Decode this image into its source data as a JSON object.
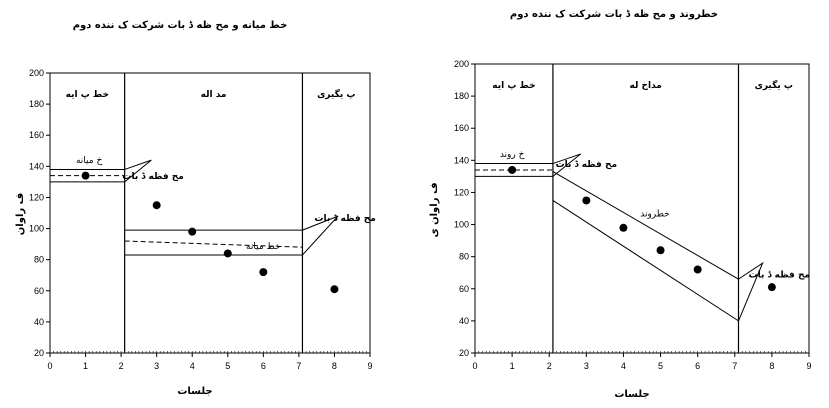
{
  "chart_data": [
    {
      "type": "scatter",
      "title": "خط میانه و مح ظه ڈ بات شرکت ک ننده دوم",
      "xlabel": "جلسات",
      "ylabel": "ف راوان",
      "xlim": [
        0,
        9
      ],
      "ylim": [
        20,
        200
      ],
      "xticks": [
        0,
        1,
        2,
        3,
        4,
        5,
        6,
        7,
        8,
        9
      ],
      "yticks": [
        20,
        40,
        60,
        80,
        100,
        120,
        140,
        160,
        180,
        200
      ],
      "phase_lines": [
        2.1,
        7.1
      ],
      "phases": [
        {
          "label": "خط پ ایه",
          "x": 1.05
        },
        {
          "label": "مد اله",
          "x": 4.6
        },
        {
          "label": "پ یگیری",
          "x": 8.05
        }
      ],
      "points": [
        [
          1,
          134
        ],
        [
          3,
          115
        ],
        [
          4,
          98
        ],
        [
          5,
          84
        ],
        [
          6,
          72
        ],
        [
          8,
          61
        ]
      ],
      "bands": [
        {
          "x": [
            0,
            2.1
          ],
          "upper": [
            138,
            138
          ],
          "lower": [
            130,
            130
          ],
          "mid": [
            134,
            134
          ]
        },
        {
          "x": [
            2.1,
            7.1
          ],
          "upper": [
            99,
            99
          ],
          "lower": [
            83,
            83
          ],
          "mid": [
            92,
            88
          ]
        }
      ],
      "annotations": [
        {
          "text": "خ میانه",
          "x": 1.1,
          "y": 142,
          "style": "light"
        },
        {
          "text": "مح فظه ڈ بات",
          "x": 2.9,
          "y": 132,
          "style": "bold"
        },
        {
          "text": "مح فظه ڈ بات",
          "x": 8.3,
          "y": 105,
          "style": "bold"
        },
        {
          "text": "خط میانه",
          "x": 6.0,
          "y": 87,
          "style": "light"
        }
      ],
      "callouts": [
        {
          "x1": 2.1,
          "y1": 138,
          "x2": 2.85,
          "y2": 144,
          "x3": 2.1,
          "y3": 130
        },
        {
          "x1": 7.1,
          "y1": 99,
          "x2": 8.1,
          "y2": 108,
          "x3": 7.1,
          "y3": 83
        }
      ]
    },
    {
      "type": "scatter",
      "title": "خطروند و مح ظه ڈ بات شرکت ک ننده دوم",
      "xlabel": "جلسات",
      "ylabel": "ف راوان ی",
      "xlim": [
        0,
        9
      ],
      "ylim": [
        20,
        200
      ],
      "xticks": [
        0,
        1,
        2,
        3,
        4,
        5,
        6,
        7,
        8,
        9
      ],
      "yticks": [
        20,
        40,
        60,
        80,
        100,
        120,
        140,
        160,
        180,
        200
      ],
      "phase_lines": [
        2.1,
        7.1
      ],
      "phases": [
        {
          "label": "خط پ ایه",
          "x": 1.05
        },
        {
          "label": "مداخ له",
          "x": 4.6
        },
        {
          "label": "پ یگیری",
          "x": 8.05
        }
      ],
      "points": [
        [
          1,
          134
        ],
        [
          3,
          115
        ],
        [
          4,
          98
        ],
        [
          5,
          84
        ],
        [
          6,
          72
        ],
        [
          8,
          61
        ]
      ],
      "bands": [
        {
          "x": [
            0,
            2.1
          ],
          "upper": [
            138,
            138
          ],
          "lower": [
            130,
            130
          ],
          "mid": [
            134,
            134
          ]
        },
        {
          "x": [
            2.1,
            7.1
          ],
          "upper": [
            133,
            66
          ],
          "lower": [
            115,
            40
          ],
          "mid": null
        }
      ],
      "annotations": [
        {
          "text": "خ روند",
          "x": 1.0,
          "y": 142,
          "style": "light"
        },
        {
          "text": "مح فظه ڈ بات",
          "x": 3.0,
          "y": 136,
          "style": "bold"
        },
        {
          "text": "خطروند",
          "x": 4.85,
          "y": 105,
          "style": "light"
        },
        {
          "text": "مح فظه ڈ بات",
          "x": 8.2,
          "y": 67,
          "style": "bold"
        }
      ],
      "callouts": [
        {
          "x1": 2.1,
          "y1": 138,
          "x2": 2.85,
          "y2": 144,
          "x3": 2.1,
          "y3": 130
        },
        {
          "x1": 7.1,
          "y1": 66,
          "x2": 7.75,
          "y2": 76,
          "x3": 7.1,
          "y3": 40
        }
      ]
    }
  ]
}
